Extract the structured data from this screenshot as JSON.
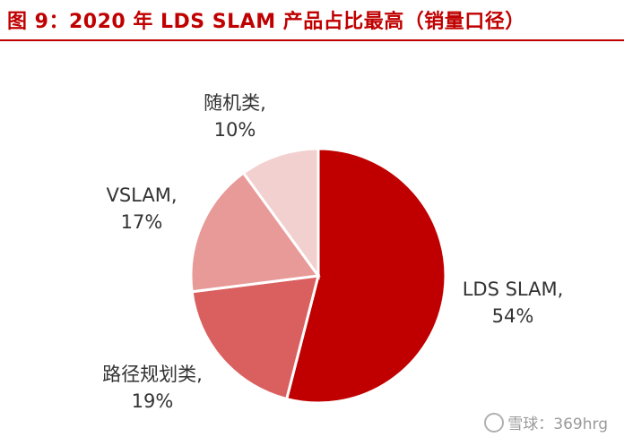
{
  "title": "图 9：2020 年 LDS SLAM 产品占比最高（销量口径）",
  "watermark": "雪球：369hrg",
  "chart_data": {
    "type": "pie",
    "title": "图 9：2020 年 LDS SLAM 产品占比最高（销量口径）",
    "slices": [
      {
        "name": "LDS SLAM",
        "value": 54,
        "display": "54%",
        "color": "#c00000"
      },
      {
        "name": "路径规划类",
        "value": 19,
        "display": "19%",
        "color": "#d9605f"
      },
      {
        "name": "VSLAM",
        "value": 17,
        "display": "17%",
        "color": "#e89a98"
      },
      {
        "name": "随机类",
        "value": 10,
        "display": "10%",
        "color": "#f2d0cf"
      }
    ],
    "legend": "none"
  }
}
